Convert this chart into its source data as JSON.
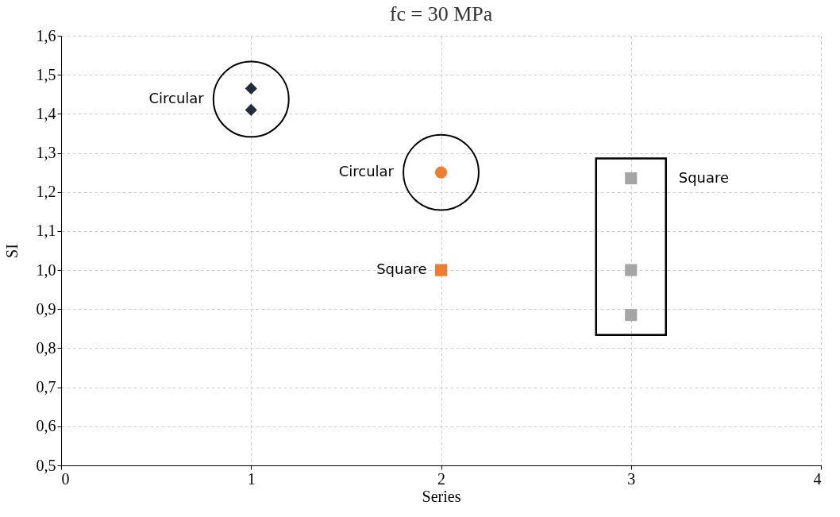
{
  "chart_data": {
    "type": "scatter",
    "title": "fc = 30 MPa",
    "xlabel": "Series",
    "ylabel": "SI",
    "series": [
      {
        "color": "#1f2d3d",
        "marker": "diamond",
        "x": [
          1,
          1
        ],
        "values": [
          1.465,
          1.41
        ]
      },
      {
        "color": "#ed7d31",
        "marker": "circle",
        "x": [
          2
        ],
        "values": [
          1.25
        ]
      },
      {
        "color": "#ed7d31",
        "marker": "square",
        "x": [
          2
        ],
        "values": [
          1.0
        ]
      },
      {
        "color": "#a5a5a5",
        "marker": "square",
        "x": [
          3,
          3,
          3
        ],
        "values": [
          1.235,
          1.0,
          0.885
        ]
      }
    ],
    "xlim": [
      0,
      4
    ],
    "xticks": [
      0,
      1,
      2,
      3,
      4
    ],
    "ylim": [
      0.5,
      1.6
    ],
    "yticks": [
      {
        "value": 0.5,
        "label": "0,5"
      },
      {
        "value": 0.6,
        "label": "0,6"
      },
      {
        "value": 0.7,
        "label": "0,7"
      },
      {
        "value": 0.8,
        "label": "0,8"
      },
      {
        "value": 0.9,
        "label": "0,9"
      },
      {
        "value": 1.0,
        "label": "1,0"
      },
      {
        "value": 1.1,
        "label": "1,1"
      },
      {
        "value": 1.2,
        "label": "1,2"
      },
      {
        "value": 1.3,
        "label": "1,3"
      },
      {
        "value": 1.4,
        "label": "1,4"
      },
      {
        "value": 1.5,
        "label": "1,5"
      },
      {
        "value": 1.6,
        "label": "1,6"
      }
    ],
    "grid": true,
    "annotations": [
      "Circular",
      "Circular",
      "Square",
      "Square"
    ]
  }
}
